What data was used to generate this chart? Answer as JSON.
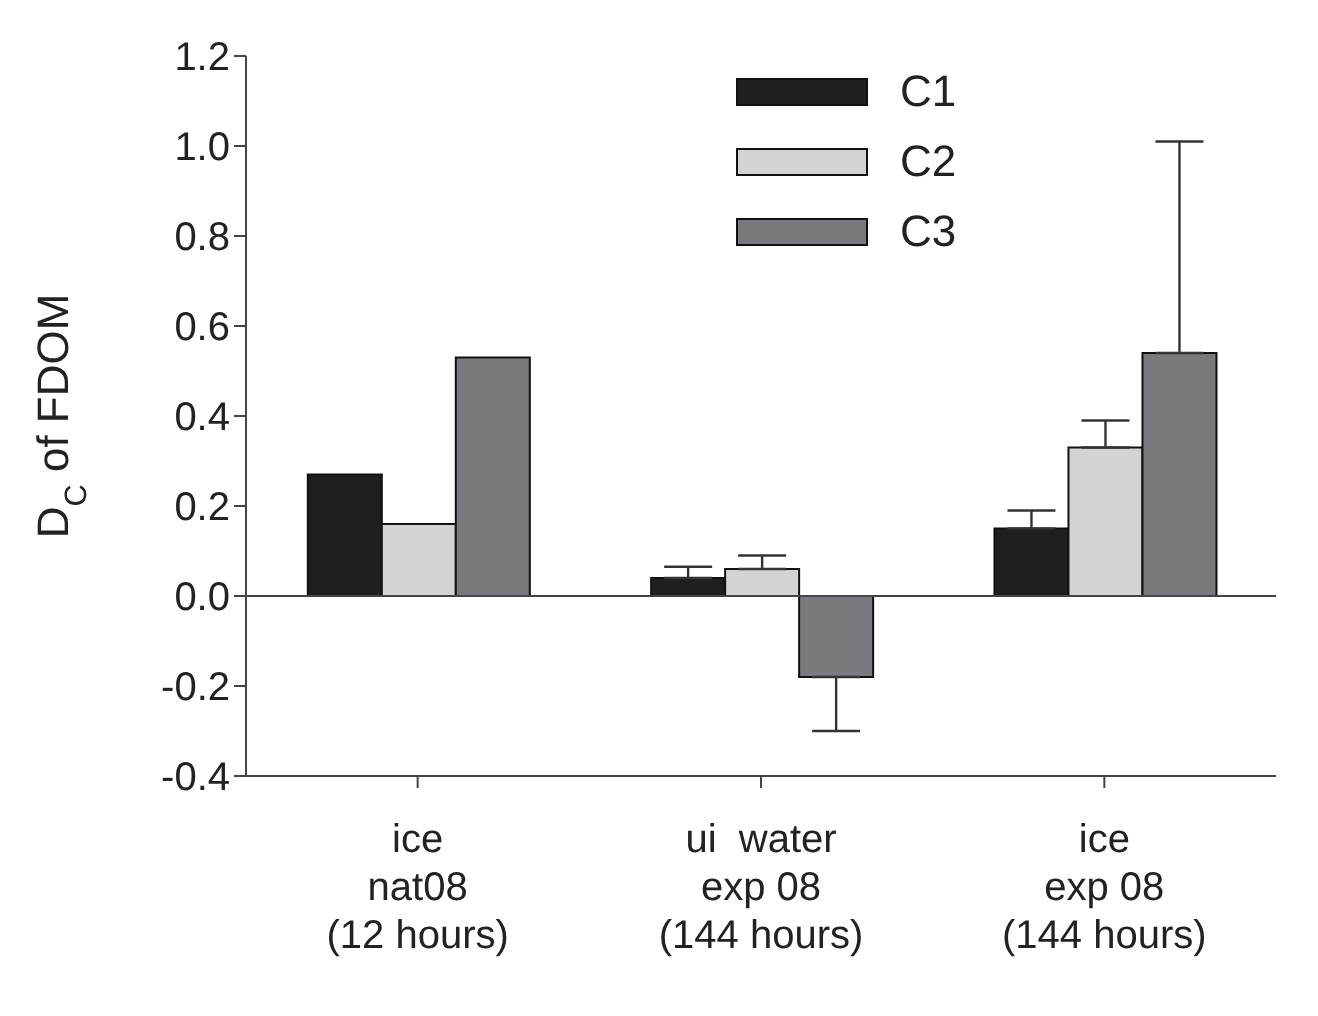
{
  "chart_data": {
    "type": "bar",
    "ylabel": "D$_{C}$ of FDOM",
    "categories": [
      "ice\nnat08\n(12 hours)",
      "ui  water\nexp 08\n(144 hours)",
      "ice\nexp 08\n(144 hours)"
    ],
    "series": [
      {
        "name": "C1",
        "color": "#1f1f22",
        "values": [
          0.27,
          0.04,
          0.15
        ],
        "errors": [
          null,
          [
            0.04,
            0.065
          ],
          [
            0.15,
            0.19
          ]
        ]
      },
      {
        "name": "C2",
        "color": "#d2d3d5",
        "values": [
          0.16,
          0.06,
          0.33
        ],
        "errors": [
          null,
          [
            0.06,
            0.09
          ],
          [
            0.33,
            0.39
          ]
        ]
      },
      {
        "name": "C3",
        "color": "#7a797e",
        "values": [
          0.53,
          -0.18,
          0.54
        ],
        "errors": [
          null,
          [
            -0.3,
            -0.18
          ],
          [
            0.54,
            1.01
          ]
        ]
      }
    ],
    "ylim": [
      -0.4,
      1.2
    ],
    "yticks": [
      -0.4,
      -0.2,
      {
        "value": 0,
        "label": "0.0"
      },
      0.2,
      0.4,
      0.6,
      0.8,
      {
        "value": 1,
        "label": "1.0"
      },
      1.2
    ],
    "ref_lines": [
      {
        "axis": "y",
        "value": 0
      }
    ],
    "grid": false,
    "legend": "top"
  }
}
